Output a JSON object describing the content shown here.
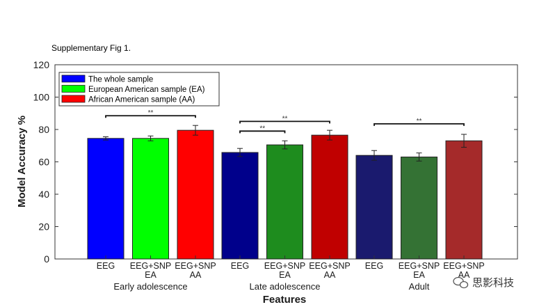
{
  "figure": {
    "caption": "Supplementary Fig 1."
  },
  "chart_data": {
    "type": "bar",
    "title": "",
    "xlabel": "Features",
    "ylabel": "Model Accuracy %",
    "ylim": [
      0,
      120
    ],
    "yticks": [
      0,
      20,
      40,
      60,
      80,
      100,
      120
    ],
    "grid": false,
    "legend_placement": "top-left",
    "legend": [
      {
        "label": "The whole sample",
        "color": "#0000ff"
      },
      {
        "label": "European American sample (EA)",
        "color": "#00ff00"
      },
      {
        "label": "African American sample (AA)",
        "color": "#ff0000"
      }
    ],
    "groups": [
      {
        "name": "Early adolescence",
        "bars": [
          {
            "category": [
              "EEG"
            ],
            "value": 74.5,
            "error": 1.0,
            "color": "#0000ff"
          },
          {
            "category": [
              "EEG+SNP",
              "EA"
            ],
            "value": 74.5,
            "error": 1.5,
            "color": "#00ff00"
          },
          {
            "category": [
              "EEG+SNP",
              "AA"
            ],
            "value": 79.5,
            "error": 3.0,
            "color": "#ff0000"
          }
        ],
        "significance": [
          {
            "from": 0,
            "to": 2,
            "value": 88.5,
            "label": "**"
          }
        ]
      },
      {
        "name": "Late adolescence",
        "bars": [
          {
            "category": [
              "EEG"
            ],
            "value": 65.8,
            "error": 2.5,
            "color": "#00008b"
          },
          {
            "category": [
              "EEG+SNP",
              "EA"
            ],
            "value": 70.5,
            "error": 2.5,
            "color": "#1e8c1e"
          },
          {
            "category": [
              "EEG+SNP",
              "AA"
            ],
            "value": 76.5,
            "error": 3.0,
            "color": "#c00000"
          }
        ],
        "significance": [
          {
            "from": 0,
            "to": 2,
            "value": 85,
            "label": "**"
          },
          {
            "from": 0,
            "to": 1,
            "value": 79,
            "label": "**"
          }
        ]
      },
      {
        "name": "Adult",
        "bars": [
          {
            "category": [
              "EEG"
            ],
            "value": 64,
            "error": 3.0,
            "color": "#1a1a6e"
          },
          {
            "category": [
              "EEG+SNP",
              "EA"
            ],
            "value": 63,
            "error": 2.5,
            "color": "#347234"
          },
          {
            "category": [
              "EEG+SNP",
              "AA"
            ],
            "value": 73,
            "error": 4.0,
            "color": "#a52a2a"
          }
        ],
        "significance": [
          {
            "from": 0,
            "to": 2,
            "value": 83.5,
            "label": "**"
          }
        ]
      }
    ]
  },
  "watermark": {
    "text": "思影科技",
    "icon": "wechat-icon"
  }
}
